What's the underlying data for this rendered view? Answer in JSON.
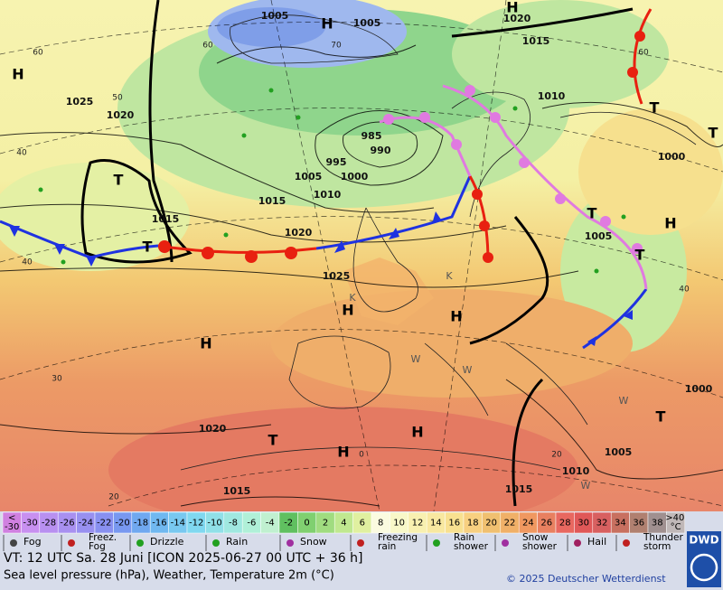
{
  "map": {
    "pressure_labels": [
      1005,
      1005,
      1020,
      1015,
      1010,
      1025,
      1020,
      985,
      990,
      995,
      1005,
      1000,
      1010,
      1015,
      1015,
      1020,
      1005,
      1025,
      1000,
      1000,
      1020,
      1005,
      1010,
      1015,
      1015
    ],
    "symbols": [
      "H",
      "H",
      "H",
      "H",
      "H",
      "H",
      "H",
      "H",
      "H",
      "T",
      "T",
      "T",
      "T",
      "T",
      "T",
      "T",
      "T",
      "K",
      "K",
      "W",
      "W",
      "W",
      "W"
    ],
    "grid_labels": [
      60,
      60,
      50,
      40,
      40,
      70,
      30,
      20,
      0,
      60,
      40,
      20
    ]
  },
  "temperature_scale": {
    "below_sign": "<",
    "below_value": -30,
    "values": [
      -30,
      -28,
      -26,
      -24,
      -22,
      -20,
      -18,
      -16,
      -14,
      -12,
      -10,
      -8,
      -6,
      -4,
      -2,
      0,
      2,
      4,
      6,
      8,
      10,
      12,
      14,
      16,
      18,
      20,
      22,
      24,
      26,
      28,
      30,
      32,
      34,
      36,
      38
    ],
    "above_sign": ">",
    "above_value": 40,
    "unit": "°C",
    "colors": [
      "#d080e0",
      "#c890f0",
      "#b890f0",
      "#a890f0",
      "#9890f0",
      "#8890f0",
      "#7898f0",
      "#70a8f0",
      "#70b8f0",
      "#78c8f0",
      "#80d8f0",
      "#90e0e8",
      "#a0e8e0",
      "#b0f0d8",
      "#c0f0d0",
      "#60c060",
      "#80d070",
      "#a0dc80",
      "#c0e890",
      "#e0f0a0",
      "#fbfbe0",
      "#f8f8c8",
      "#f8f0b0",
      "#f8e8a0",
      "#f8e090",
      "#f8d080",
      "#f0c070",
      "#f0b068",
      "#f09860",
      "#e88060",
      "#e86860",
      "#e05858",
      "#d86060",
      "#c87060",
      "#b08070",
      "#a09090",
      "#c0b8b8"
    ]
  },
  "weather_legend": [
    {
      "lines": [
        "Fog"
      ]
    },
    {
      "lines": [
        "Freez.",
        "Fog"
      ]
    },
    {
      "lines": [
        "Drizzle"
      ]
    },
    {
      "lines": [
        "Rain"
      ]
    },
    {
      "lines": [
        "Snow"
      ]
    },
    {
      "lines": [
        "Freezing",
        "rain"
      ]
    },
    {
      "lines": [
        "Rain",
        "shower"
      ]
    },
    {
      "lines": [
        "Snow",
        "shower"
      ]
    },
    {
      "lines": [
        "Hail"
      ]
    },
    {
      "lines": [
        "Thunder",
        "storm"
      ]
    }
  ],
  "footer": {
    "valid_time": "VT: 12 UTC Sa.  28 Juni [ICON 2025-06-27  00 UTC + 36 h]",
    "product": "Sea level pressure (hPa), Weather, Temperature 2m (°C)",
    "copyright": "© 2025 Deutscher Wetterdienst",
    "logo": "DWD"
  }
}
